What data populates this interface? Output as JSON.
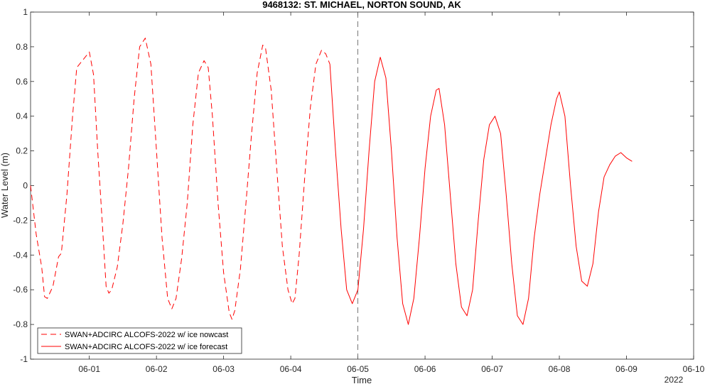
{
  "chart_data": {
    "type": "line",
    "title": "9468132: ST. MICHAEL, NORTON SOUND, AK",
    "xlabel": "Time",
    "ylabel": "Water Level (m)",
    "xlim": [
      "2022-05-31T03:00",
      "2022-06-10T00:00"
    ],
    "ylim": [
      -1,
      1
    ],
    "year_label": "2022",
    "x_ticks": [
      {
        "label": "06-01",
        "t": "2022-06-01T00:00"
      },
      {
        "label": "06-02",
        "t": "2022-06-02T00:00"
      },
      {
        "label": "06-03",
        "t": "2022-06-03T00:00"
      },
      {
        "label": "06-04",
        "t": "2022-06-04T00:00"
      },
      {
        "label": "06-05",
        "t": "2022-06-05T00:00"
      },
      {
        "label": "06-06",
        "t": "2022-06-06T00:00"
      },
      {
        "label": "06-07",
        "t": "2022-06-07T00:00"
      },
      {
        "label": "06-08",
        "t": "2022-06-08T00:00"
      },
      {
        "label": "06-09",
        "t": "2022-06-09T00:00"
      },
      {
        "label": "06-10",
        "t": "2022-06-10T00:00"
      }
    ],
    "y_ticks": [
      {
        "label": "-1",
        "v": -1
      },
      {
        "label": "-0.8",
        "v": -0.8
      },
      {
        "label": "-0.6",
        "v": -0.6
      },
      {
        "label": "-0.4",
        "v": -0.4
      },
      {
        "label": "-0.2",
        "v": -0.2
      },
      {
        "label": "0",
        "v": 0
      },
      {
        "label": "0.2",
        "v": 0.2
      },
      {
        "label": "0.4",
        "v": 0.4
      },
      {
        "label": "0.6",
        "v": 0.6
      },
      {
        "label": "0.8",
        "v": 0.8
      },
      {
        "label": "1",
        "v": 1
      }
    ],
    "nowcast_end": "2022-06-05T00:00",
    "grid": false,
    "legend_position": "bottom-left",
    "series": [
      {
        "name": "SWAN+ADCIRC ALCOFS-2022 w/ ice nowcast",
        "color": "#ff0000",
        "style": "dashed",
        "points": [
          [
            "2022-05-31T03:00",
            0.0
          ],
          [
            "2022-05-31T05:00",
            -0.28
          ],
          [
            "2022-05-31T07:00",
            -0.47
          ],
          [
            "2022-05-31T08:00",
            -0.64
          ],
          [
            "2022-05-31T09:00",
            -0.65
          ],
          [
            "2022-05-31T11:00",
            -0.58
          ],
          [
            "2022-05-31T13:00",
            -0.41
          ],
          [
            "2022-05-31T14:00",
            -0.39
          ],
          [
            "2022-05-31T16:00",
            -0.05
          ],
          [
            "2022-05-31T18:00",
            0.4
          ],
          [
            "2022-05-31T19:30",
            0.68
          ],
          [
            "2022-06-01T00:00",
            0.77
          ],
          [
            "2022-06-01T01:30",
            0.64
          ],
          [
            "2022-06-01T03:00",
            0.2
          ],
          [
            "2022-06-01T04:30",
            -0.18
          ],
          [
            "2022-06-01T06:00",
            -0.58
          ],
          [
            "2022-06-01T07:00",
            -0.62
          ],
          [
            "2022-06-01T08:00",
            -0.6
          ],
          [
            "2022-06-01T10:00",
            -0.47
          ],
          [
            "2022-06-01T12:00",
            -0.22
          ],
          [
            "2022-06-01T14:00",
            0.1
          ],
          [
            "2022-06-01T16:00",
            0.5
          ],
          [
            "2022-06-01T18:00",
            0.8
          ],
          [
            "2022-06-01T20:00",
            0.85
          ],
          [
            "2022-06-01T22:00",
            0.7
          ],
          [
            "2022-06-02T00:00",
            0.2
          ],
          [
            "2022-06-02T02:00",
            -0.3
          ],
          [
            "2022-06-02T04:00",
            -0.65
          ],
          [
            "2022-06-02T05:30",
            -0.71
          ],
          [
            "2022-06-02T07:00",
            -0.65
          ],
          [
            "2022-06-02T09:00",
            -0.42
          ],
          [
            "2022-06-02T11:00",
            -0.1
          ],
          [
            "2022-06-02T13:00",
            0.35
          ],
          [
            "2022-06-02T15:00",
            0.65
          ],
          [
            "2022-06-02T17:00",
            0.72
          ],
          [
            "2022-06-02T18:30",
            0.68
          ],
          [
            "2022-06-02T20:00",
            0.4
          ],
          [
            "2022-06-02T22:00",
            -0.1
          ],
          [
            "2022-06-03T00:00",
            -0.5
          ],
          [
            "2022-06-03T02:00",
            -0.73
          ],
          [
            "2022-06-03T03:00",
            -0.77
          ],
          [
            "2022-06-03T04:00",
            -0.72
          ],
          [
            "2022-06-03T06:00",
            -0.48
          ],
          [
            "2022-06-03T08:00",
            -0.1
          ],
          [
            "2022-06-03T10:00",
            0.3
          ],
          [
            "2022-06-03T12:00",
            0.65
          ],
          [
            "2022-06-03T14:00",
            0.81
          ],
          [
            "2022-06-03T15:00",
            0.79
          ],
          [
            "2022-06-03T17:00",
            0.55
          ],
          [
            "2022-06-03T19:00",
            0.1
          ],
          [
            "2022-06-03T21:00",
            -0.35
          ],
          [
            "2022-06-03T23:00",
            -0.6
          ],
          [
            "2022-06-04T00:30",
            -0.68
          ],
          [
            "2022-06-04T01:30",
            -0.65
          ],
          [
            "2022-06-04T03:00",
            -0.4
          ],
          [
            "2022-06-04T05:00",
            0.05
          ],
          [
            "2022-06-04T07:00",
            0.45
          ],
          [
            "2022-06-04T09:00",
            0.7
          ],
          [
            "2022-06-04T11:00",
            0.78
          ],
          [
            "2022-06-04T12:30",
            0.76
          ],
          [
            "2022-06-04T14:00",
            0.7
          ]
        ]
      },
      {
        "name": "SWAN+ADCIRC ALCOFS-2022 w/ ice forecast",
        "color": "#ff0000",
        "style": "solid",
        "points": [
          [
            "2022-06-04T14:00",
            0.7
          ],
          [
            "2022-06-04T16:00",
            0.2
          ],
          [
            "2022-06-04T18:00",
            -0.25
          ],
          [
            "2022-06-04T20:00",
            -0.6
          ],
          [
            "2022-06-04T22:00",
            -0.68
          ],
          [
            "2022-06-05T00:00",
            -0.6
          ],
          [
            "2022-06-05T02:00",
            -0.25
          ],
          [
            "2022-06-05T04:00",
            0.2
          ],
          [
            "2022-06-05T06:00",
            0.6
          ],
          [
            "2022-06-05T08:00",
            0.74
          ],
          [
            "2022-06-05T10:00",
            0.62
          ],
          [
            "2022-06-05T12:00",
            0.2
          ],
          [
            "2022-06-05T14:00",
            -0.3
          ],
          [
            "2022-06-05T16:00",
            -0.68
          ],
          [
            "2022-06-05T18:00",
            -0.8
          ],
          [
            "2022-06-05T20:00",
            -0.65
          ],
          [
            "2022-06-05T22:00",
            -0.3
          ],
          [
            "2022-06-06T00:00",
            0.1
          ],
          [
            "2022-06-06T02:00",
            0.4
          ],
          [
            "2022-06-06T04:00",
            0.55
          ],
          [
            "2022-06-06T05:00",
            0.56
          ],
          [
            "2022-06-06T07:00",
            0.35
          ],
          [
            "2022-06-06T09:00",
            -0.05
          ],
          [
            "2022-06-06T11:00",
            -0.45
          ],
          [
            "2022-06-06T13:00",
            -0.7
          ],
          [
            "2022-06-06T15:00",
            -0.75
          ],
          [
            "2022-06-06T17:00",
            -0.6
          ],
          [
            "2022-06-06T19:00",
            -0.2
          ],
          [
            "2022-06-06T21:00",
            0.15
          ],
          [
            "2022-06-06T23:00",
            0.35
          ],
          [
            "2022-06-07T01:00",
            0.4
          ],
          [
            "2022-06-07T03:00",
            0.3
          ],
          [
            "2022-06-07T05:00",
            -0.05
          ],
          [
            "2022-06-07T07:00",
            -0.45
          ],
          [
            "2022-06-07T09:00",
            -0.75
          ],
          [
            "2022-06-07T11:00",
            -0.8
          ],
          [
            "2022-06-07T13:00",
            -0.65
          ],
          [
            "2022-06-07T15:00",
            -0.3
          ],
          [
            "2022-06-07T17:00",
            -0.05
          ],
          [
            "2022-06-07T19:00",
            0.15
          ],
          [
            "2022-06-07T21:00",
            0.35
          ],
          [
            "2022-06-07T23:00",
            0.5
          ],
          [
            "2022-06-08T00:00",
            0.54
          ],
          [
            "2022-06-08T02:00",
            0.4
          ],
          [
            "2022-06-08T04:00",
            0.0
          ],
          [
            "2022-06-08T06:00",
            -0.35
          ],
          [
            "2022-06-08T08:00",
            -0.55
          ],
          [
            "2022-06-08T10:00",
            -0.58
          ],
          [
            "2022-06-08T12:00",
            -0.45
          ],
          [
            "2022-06-08T14:00",
            -0.15
          ],
          [
            "2022-06-08T16:00",
            0.05
          ],
          [
            "2022-06-08T18:00",
            0.12
          ],
          [
            "2022-06-08T20:00",
            0.17
          ],
          [
            "2022-06-08T22:00",
            0.19
          ],
          [
            "2022-06-09T00:00",
            0.16
          ],
          [
            "2022-06-09T02:00",
            0.14
          ]
        ]
      }
    ]
  }
}
